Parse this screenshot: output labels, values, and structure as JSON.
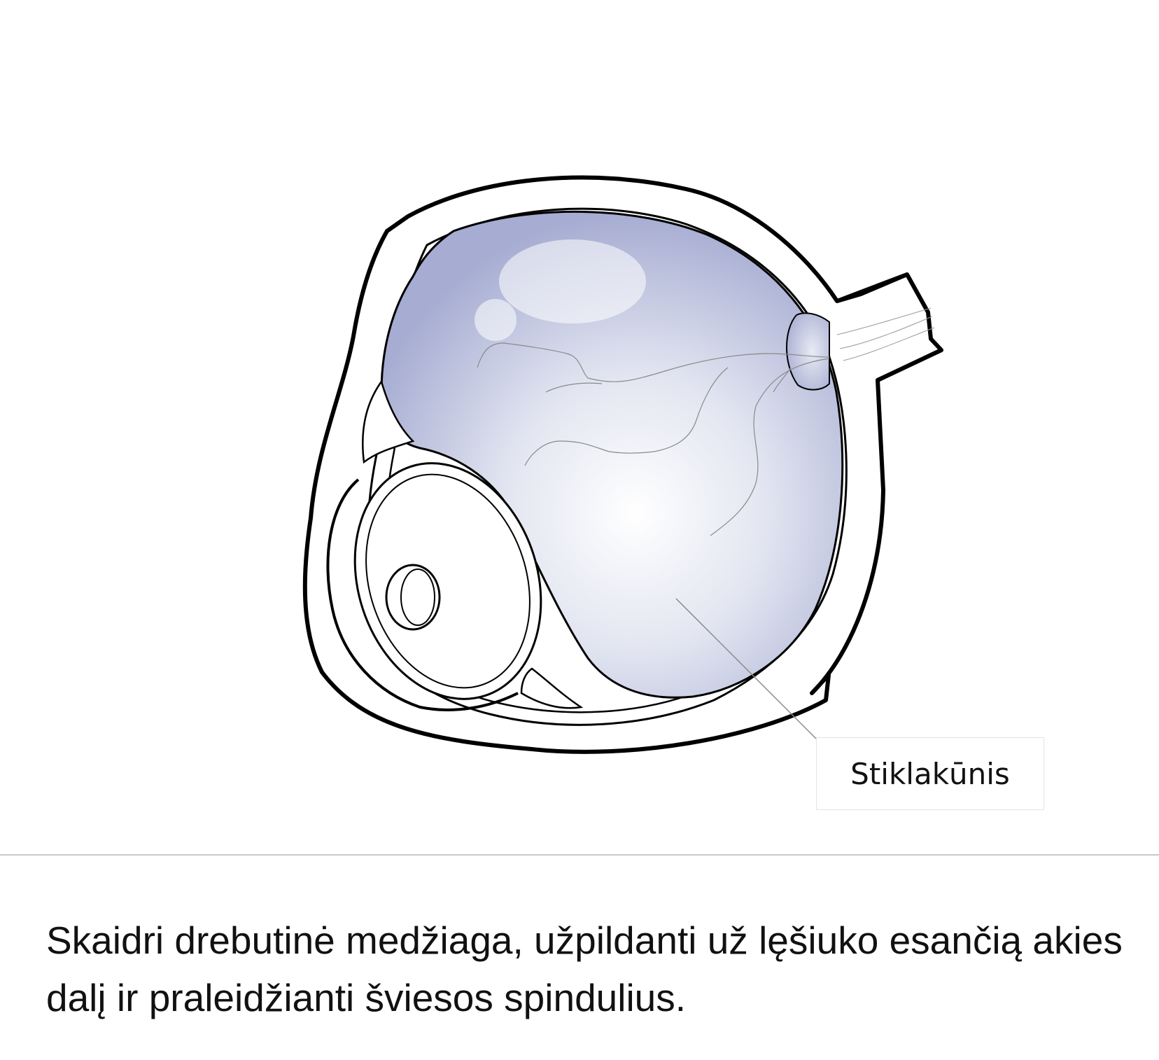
{
  "diagram": {
    "callout_label": "Stiklakūnis",
    "vitreous_color": "#a6acd2"
  },
  "description": {
    "text": "Skaidri drebutinė medžiaga, užpildanti už lęšiuko esančią akies dalį ir praleidžianti šviesos spindulius."
  }
}
